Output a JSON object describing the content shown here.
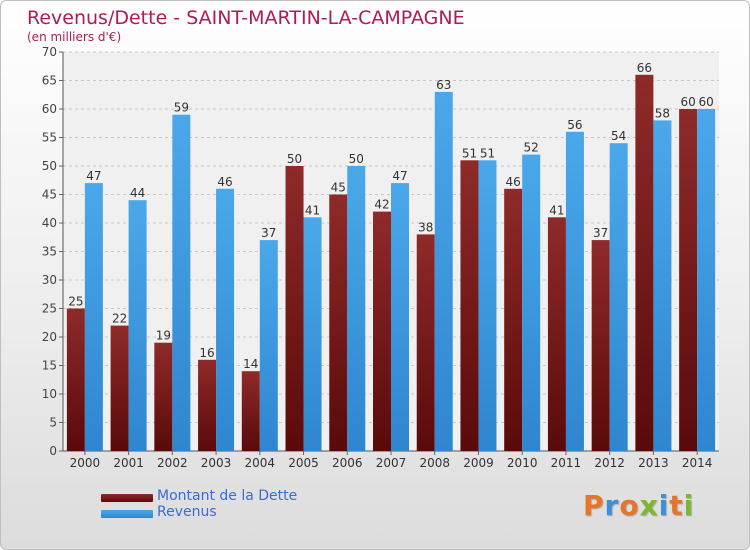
{
  "chart_data": {
    "type": "bar",
    "title": "Revenus/Dette - SAINT-MARTIN-LA-CAMPAGNE",
    "subtitle": "(en milliers d'€)",
    "categories": [
      "2000",
      "2001",
      "2002",
      "2003",
      "2004",
      "2005",
      "2006",
      "2007",
      "2008",
      "2009",
      "2010",
      "2011",
      "2012",
      "2013",
      "2014"
    ],
    "series": [
      {
        "name": "Montant de la Dette",
        "color": "#7a1c1c",
        "values": [
          25,
          22,
          19,
          16,
          14,
          50,
          45,
          42,
          38,
          51,
          46,
          41,
          37,
          66,
          60
        ]
      },
      {
        "name": "Revenus",
        "color": "#3d9be0",
        "values": [
          47,
          44,
          59,
          46,
          37,
          41,
          50,
          47,
          63,
          51,
          52,
          56,
          54,
          58,
          60
        ]
      }
    ],
    "ylim": [
      0,
      70
    ],
    "yticks": [
      0,
      5,
      10,
      15,
      20,
      25,
      30,
      35,
      40,
      45,
      50,
      55,
      60,
      65,
      70
    ],
    "grid": true,
    "legend_position": "bottom-left"
  },
  "logo": {
    "text": "Proxiti",
    "colors": [
      "#e8742a",
      "#3d8fd6",
      "#e8742a",
      "#7cb82f",
      "#3d8fd6",
      "#e8742a",
      "#7cb82f"
    ]
  }
}
